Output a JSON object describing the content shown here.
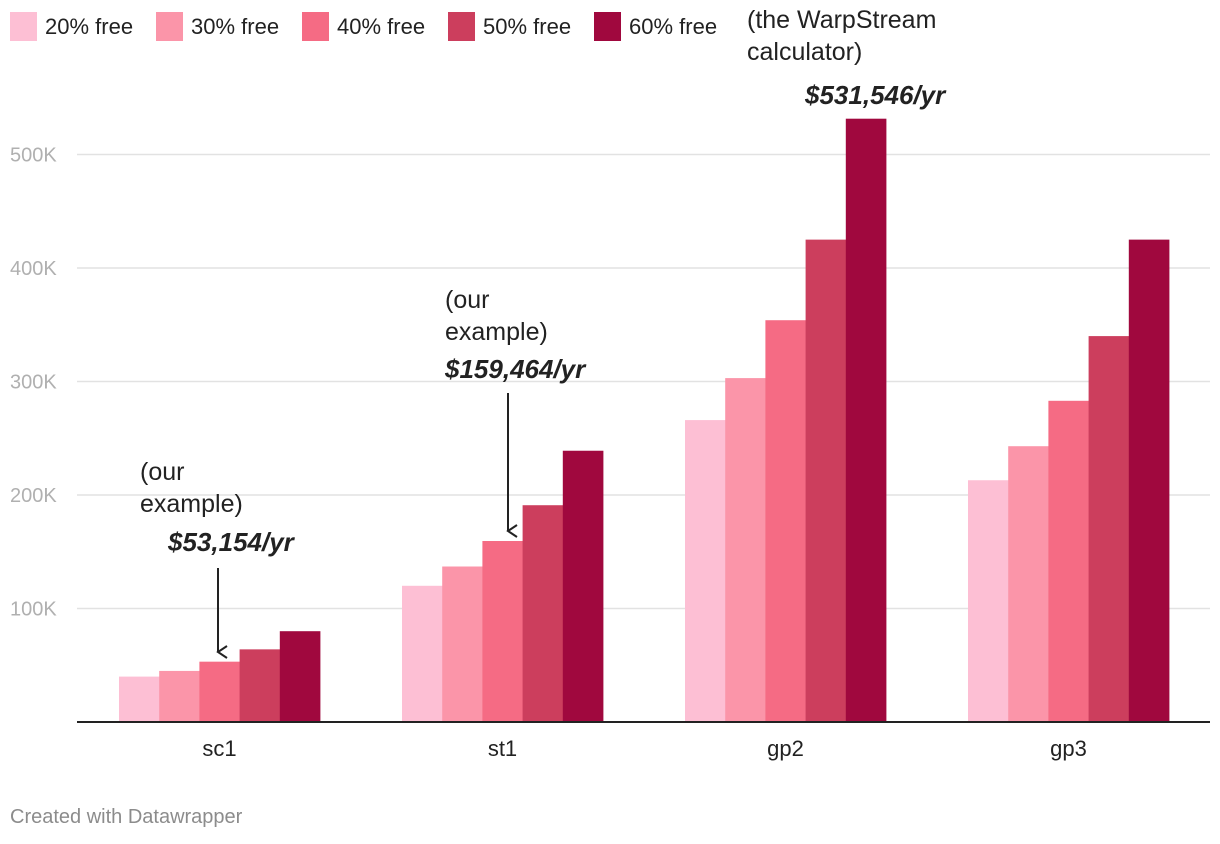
{
  "chart_data": {
    "type": "bar",
    "categories": [
      "sc1",
      "st1",
      "gp2",
      "gp3"
    ],
    "series": [
      {
        "name": "20% free",
        "color": "#fdbfd4",
        "values": [
          40000,
          120000,
          266000,
          213000
        ]
      },
      {
        "name": "30% free",
        "color": "#fb95a9",
        "values": [
          45000,
          137000,
          303000,
          243000
        ]
      },
      {
        "name": "40% free",
        "color": "#f56b84",
        "values": [
          53154,
          159464,
          354000,
          283000
        ]
      },
      {
        "name": "50% free",
        "color": "#cc3e5d",
        "values": [
          64000,
          191000,
          425000,
          340000
        ]
      },
      {
        "name": "60% free",
        "color": "#a0083e",
        "values": [
          80000,
          239000,
          531546,
          425000
        ]
      }
    ],
    "y_ticks": [
      "100K",
      "200K",
      "300K",
      "400K",
      "500K"
    ],
    "y_tick_values": [
      100000,
      200000,
      300000,
      400000,
      500000
    ],
    "ylim": [
      0,
      560000
    ],
    "grid": true,
    "legend_position": "top-left",
    "annotations": [
      {
        "category": "sc1",
        "series": "40% free",
        "lines": [
          "(our",
          "example)"
        ],
        "value_text": "$53,154/yr",
        "arrow": true
      },
      {
        "category": "st1",
        "series": "40% free",
        "lines": [
          "(our",
          "example)"
        ],
        "value_text": "$159,464/yr",
        "arrow": true
      },
      {
        "category": "gp2",
        "series": "60% free",
        "lines": [
          "(the WarpStream",
          "calculator)"
        ],
        "value_text": "$531,546/yr",
        "arrow": false
      }
    ]
  },
  "footer": {
    "credit": "Created with Datawrapper"
  }
}
